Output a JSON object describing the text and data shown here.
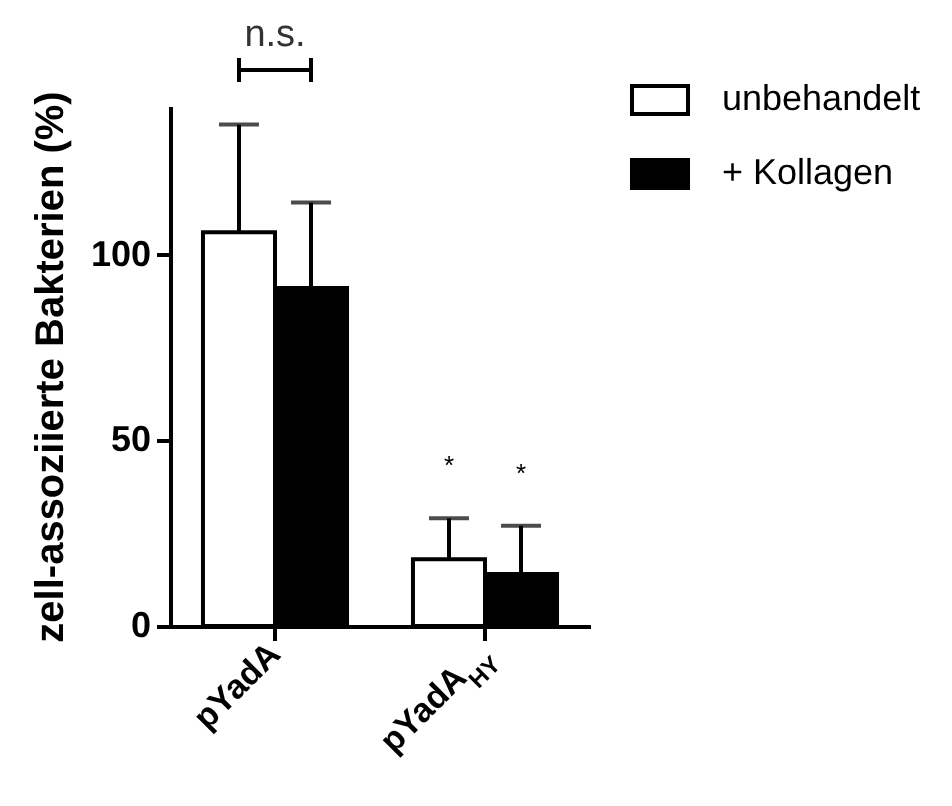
{
  "chart_data": {
    "type": "bar",
    "ylabel": "zell-assoziierte Bakterien (%)",
    "categories": [
      "pYadA",
      "pYadA$_{HY}$"
    ],
    "series": [
      {
        "name": "unbehandelt",
        "color": "#ffffff",
        "values": [
          106,
          18
        ],
        "errors": [
          [
            106,
            135
          ],
          [
            18,
            29
          ]
        ]
      },
      {
        "name": "+ Kollagen",
        "color": "#000000",
        "values": [
          91,
          14
        ],
        "errors": [
          [
            91,
            114
          ],
          [
            14,
            27
          ]
        ]
      }
    ],
    "ylim": [
      0,
      140
    ],
    "yticks": [
      0,
      50,
      100
    ],
    "grid": false,
    "legend": "top right",
    "annotations": [
      "n.s.",
      "*",
      "*"
    ]
  }
}
